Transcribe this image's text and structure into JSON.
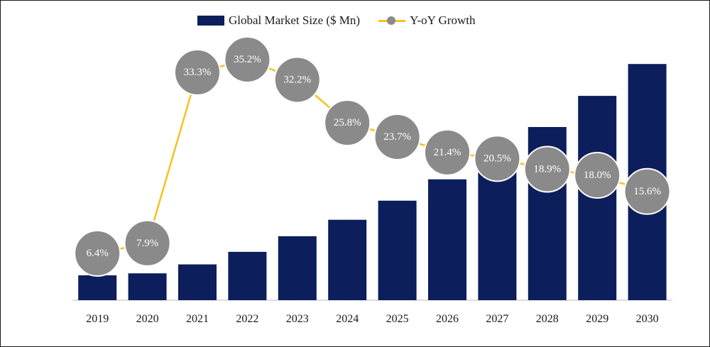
{
  "chart_data": {
    "type": "bar",
    "categories": [
      "2019",
      "2020",
      "2021",
      "2022",
      "2023",
      "2024",
      "2025",
      "2026",
      "2027",
      "2028",
      "2029",
      "2030"
    ],
    "series": [
      {
        "name": "Global Market Size ($ Mn)",
        "type": "bar",
        "color": "#0c1e5b",
        "values": [
          35.0,
          37.8,
          50.4,
          68.1,
          90.1,
          113.3,
          140.2,
          170.3,
          205.2,
          244.0,
          287.9,
          332.8
        ]
      },
      {
        "name": "Y-oY Growth",
        "type": "line",
        "color": "#f7c11f",
        "marker_color": "#8a8a8a",
        "values": [
          6.4,
          7.9,
          33.3,
          35.2,
          32.2,
          25.8,
          23.7,
          21.4,
          20.5,
          18.9,
          18.0,
          15.6
        ],
        "labels": [
          "6.4%",
          "7.9%",
          "33.3%",
          "35.2%",
          "32.2%",
          "25.8%",
          "23.7%",
          "21.4%",
          "20.5%",
          "18.9%",
          "18.0%",
          "15.6%"
        ]
      }
    ],
    "legend_position": "top-center",
    "grid": false
  }
}
